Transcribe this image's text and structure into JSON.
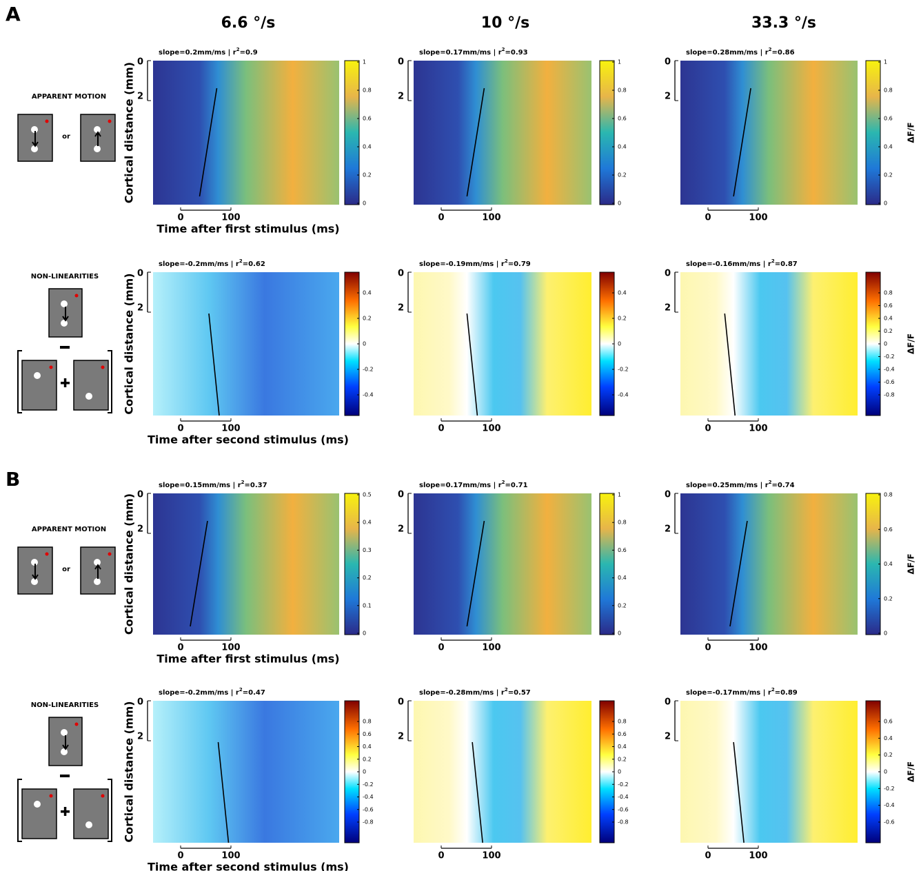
{
  "panel_labels": [
    "A",
    "B"
  ],
  "column_headers": [
    "6.6 °/s",
    "10 °/s",
    "33.3 °/s"
  ],
  "rows": [
    {
      "side_title": "APPARENT MOTION",
      "connector": "or",
      "y_label": "Cortical distance (mm)",
      "y_ticks": [
        "0",
        "2"
      ],
      "x_ticks": [
        "0",
        "100"
      ],
      "x_label": "Time after first stimulus (ms)",
      "colorbar_label": "ΔF/F",
      "plots": [
        {
          "stats": [
            "slope=0.2mm/ms | r",
            "2",
            "=0.9"
          ],
          "colorbar": [
            "0",
            "0.2",
            "0.4",
            "0.6",
            "0.8",
            "1"
          ]
        },
        {
          "stats": [
            "slope=0.17mm/ms | r",
            "2",
            "=0.93"
          ],
          "colorbar": [
            "0",
            "0.2",
            "0.4",
            "0.6",
            "0.8",
            "1"
          ]
        },
        {
          "stats": [
            "slope=0.28mm/ms | r",
            "2",
            "=0.86"
          ],
          "colorbar": [
            "0",
            "0.2",
            "0.4",
            "0.6",
            "0.8",
            "1"
          ]
        }
      ]
    },
    {
      "side_title": "NON-LINEARITIES",
      "y_label": "Cortical distance (mm)",
      "y_ticks": [
        "0",
        "2"
      ],
      "x_ticks": [
        "0",
        "100"
      ],
      "x_label": "Time after second stimulus (ms)",
      "colorbar_label": "ΔF/F",
      "plots": [
        {
          "stats": [
            "slope=-0.2mm/ms | r",
            "2",
            "=0.62"
          ],
          "colorbar": [
            "-0.4",
            "-0.2",
            "0",
            "0.2",
            "0.4"
          ]
        },
        {
          "stats": [
            "slope=-0.19mm/ms | r",
            "2",
            "=0.79"
          ],
          "colorbar": [
            "-0.4",
            "-0.2",
            "0",
            "0.2",
            "0.4"
          ]
        },
        {
          "stats": [
            "slope=-0.16mm/ms | r",
            "2",
            "=0.87"
          ],
          "colorbar": [
            "-0.8",
            "-0.6",
            "-0.4",
            "-0.2",
            "0",
            "0.2",
            "0.4",
            "0.6",
            "0.8"
          ]
        }
      ]
    },
    {
      "side_title": "APPARENT MOTION",
      "connector": "or",
      "y_label": "Cortical distance (mm)",
      "y_ticks": [
        "0",
        "2"
      ],
      "x_ticks": [
        "0",
        "100"
      ],
      "x_label": "Time after first stimulus (ms)",
      "colorbar_label": "ΔF/F",
      "plots": [
        {
          "stats": [
            "slope=0.15mm/ms | r",
            "2",
            "=0.37"
          ],
          "colorbar": [
            "0",
            "0.1",
            "0.2",
            "0.3",
            "0.4",
            "0.5"
          ]
        },
        {
          "stats": [
            "slope=0.17mm/ms | r",
            "2",
            "=0.71"
          ],
          "colorbar": [
            "0",
            "0.2",
            "0.4",
            "0.6",
            "0.8",
            "1"
          ]
        },
        {
          "stats": [
            "slope=0.25mm/ms | r",
            "2",
            "=0.74"
          ],
          "colorbar": [
            "0",
            "0.2",
            "0.4",
            "0.6",
            "0.8"
          ]
        }
      ]
    },
    {
      "side_title": "NON-LINEARITIES",
      "y_label": "Cortical distance (mm)",
      "y_ticks": [
        "0",
        "2"
      ],
      "x_ticks": [
        "0",
        "100"
      ],
      "x_label": "Time after second stimulus (ms)",
      "colorbar_label": "ΔF/F",
      "plots": [
        {
          "stats": [
            "slope=-0.2mm/ms | r",
            "2",
            "=0.47"
          ],
          "colorbar": [
            "-0.8",
            "-0.6",
            "-0.4",
            "-0.2",
            "0",
            "0.2",
            "0.4",
            "0.6",
            "0.8"
          ]
        },
        {
          "stats": [
            "slope=-0.28mm/ms | r",
            "2",
            "=0.57"
          ],
          "colorbar": [
            "-0.8",
            "-0.6",
            "-0.4",
            "-0.2",
            "0",
            "0.2",
            "0.4",
            "0.6",
            "0.8"
          ]
        },
        {
          "stats": [
            "slope=-0.17mm/ms | r",
            "2",
            "=0.89"
          ],
          "colorbar": [
            "-0.6",
            "-0.4",
            "-0.2",
            "0",
            "0.2",
            "0.4",
            "0.6"
          ]
        }
      ]
    }
  ]
}
